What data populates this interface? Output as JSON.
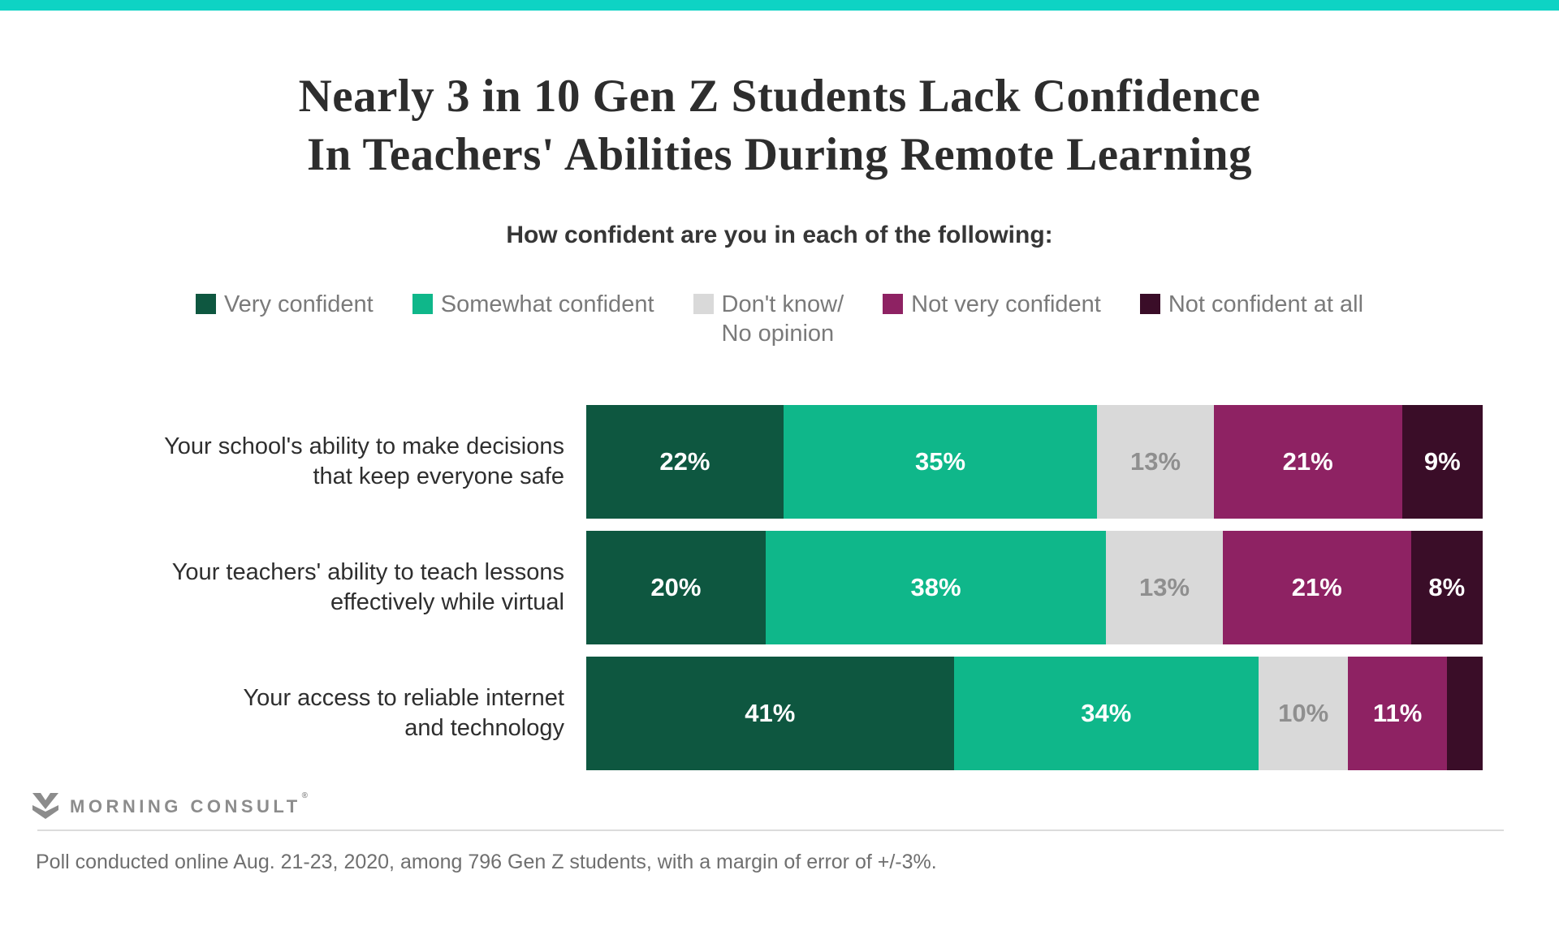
{
  "accent_color": "#0ed3c4",
  "title": {
    "line1": "Nearly 3 in 10 Gen Z Students Lack Confidence",
    "line2": "In Teachers' Abilities During Remote Learning"
  },
  "subtitle": "How confident are you in each of the following:",
  "legend": [
    {
      "label": "Very confident",
      "color": "#0e5740"
    },
    {
      "label": "Somewhat confident",
      "color": "#0fb78a"
    },
    {
      "label": "Don't know/\nNo opinion",
      "color": "#d9d9d9"
    },
    {
      "label": "Not very confident",
      "color": "#8e2263"
    },
    {
      "label": "Not confident at all",
      "color": "#3a0d28"
    }
  ],
  "chart_data": {
    "type": "bar",
    "orientation": "horizontal-stacked",
    "title": "Nearly 3 in 10 Gen Z Students Lack Confidence In Teachers' Abilities During Remote Learning",
    "question": "How confident are you in each of the following:",
    "categories": [
      "Your school's ability to make decisions\nthat keep everyone safe",
      "Your teachers' ability to teach lessons\neffectively while virtual",
      "Your access to reliable internet\nand technology"
    ],
    "series": [
      {
        "name": "Very confident",
        "color": "#0e5740",
        "label_color": "#ffffff",
        "values": [
          22,
          20,
          41
        ]
      },
      {
        "name": "Somewhat confident",
        "color": "#0fb78a",
        "label_color": "#ffffff",
        "values": [
          35,
          38,
          34
        ]
      },
      {
        "name": "Don't know/No opinion",
        "color": "#d9d9d9",
        "label_color": "#8f8f8f",
        "values": [
          13,
          13,
          10
        ]
      },
      {
        "name": "Not very confident",
        "color": "#8e2263",
        "label_color": "#ffffff",
        "values": [
          21,
          21,
          11
        ]
      },
      {
        "name": "Not confident at all",
        "color": "#3a0d28",
        "label_color": "#ffffff",
        "values": [
          9,
          8,
          4
        ]
      }
    ],
    "value_suffix": "%",
    "label_min_value": 5,
    "xlim": [
      0,
      100
    ],
    "legend_position": "top",
    "grid": false
  },
  "branding": {
    "logo_text": "MORNING CONSULT",
    "registered_mark": "®"
  },
  "footnote": "Poll conducted online Aug. 21-23, 2020, among 796 Gen Z students, with a margin of error of +/-3%."
}
